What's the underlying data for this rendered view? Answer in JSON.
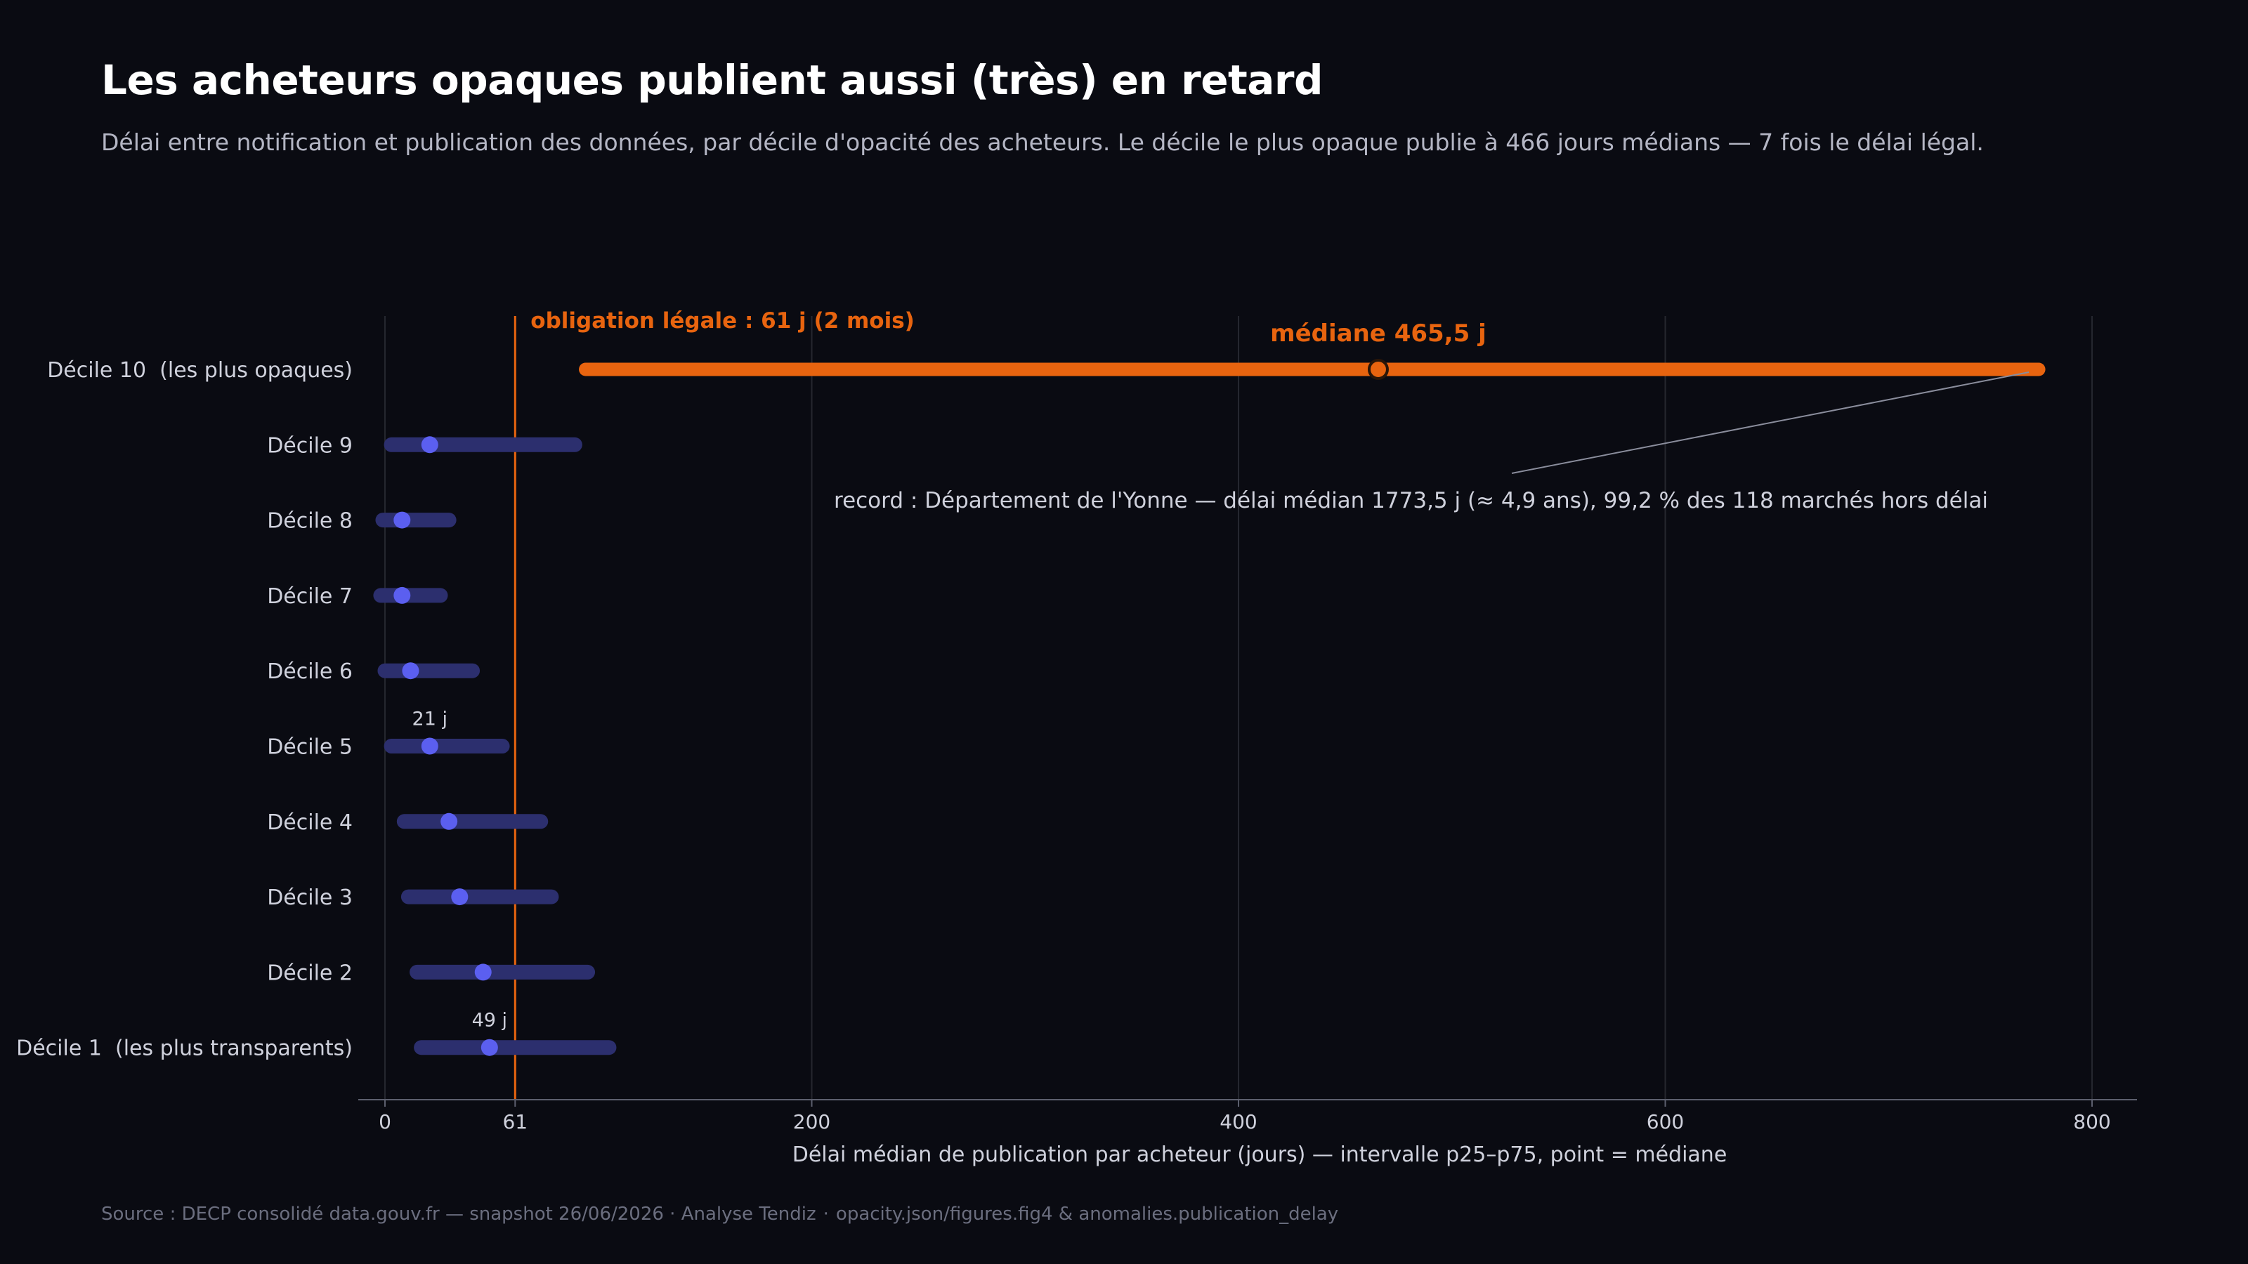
{
  "header": {
    "title": "Les acheteurs opaques publient aussi (très) en retard",
    "subtitle": "Délai entre notification et publication des données, par décile d'opacité des acheteurs. Le décile le plus opaque publie à 466 jours médians — 7 fois le délai légal."
  },
  "footer": {
    "source": "Source : DECP consolidé data.gouv.fr — snapshot 26/06/2026 · Analyse Tendiz",
    "ref": "opacity.json/figures.fig4 & anomalies.publication_delay"
  },
  "colors": {
    "background": "#0a0b12",
    "accent": "#e8640f",
    "range": "#2c2f6e",
    "point": "#5b5ff0",
    "grid": "#25272f",
    "axis": "#5c5f6e",
    "text": "#cfd1dc",
    "muted": "#8a8d9c"
  },
  "chart_data": {
    "type": "dot-range",
    "xlabel": "Délai médian de publication par acheteur (jours) — intervalle p25–p75, point = médiane",
    "xlim": [
      -5,
      820
    ],
    "xticks": [
      0,
      61,
      200,
      400,
      600,
      800
    ],
    "xtick_labels": [
      "0",
      "61",
      "200",
      "400",
      "600",
      "800"
    ],
    "grid": true,
    "categories": [
      "Décile 10  (les plus opaques)",
      "Décile 9",
      "Décile 8",
      "Décile 7",
      "Décile 6",
      "Décile 5",
      "Décile 4",
      "Décile 3",
      "Décile 2",
      "Décile 1  (les plus transparents)"
    ],
    "series": [
      {
        "name": "p25",
        "values": [
          94,
          3,
          -1,
          -2,
          0,
          3,
          9,
          11,
          15,
          17
        ]
      },
      {
        "name": "médiane",
        "values": [
          465.5,
          21,
          8,
          8,
          12,
          21,
          30,
          35,
          46,
          49
        ]
      },
      {
        "name": "p75",
        "values": [
          775,
          89,
          30,
          26,
          41,
          55,
          73,
          78,
          95,
          105
        ]
      }
    ],
    "highlight_index": 0,
    "reference_line": {
      "x": 61,
      "label": "obligation légale : 61 j (2 mois)"
    },
    "annotations": {
      "top_median": "médiane 465,5 j",
      "record": "record : Département de l'Yonne — délai médian 1773,5 j (≈ 4,9 ans), 99,2 % des 118 marchés hors délai",
      "d5_label": "21 j",
      "d1_label": "49 j"
    }
  }
}
